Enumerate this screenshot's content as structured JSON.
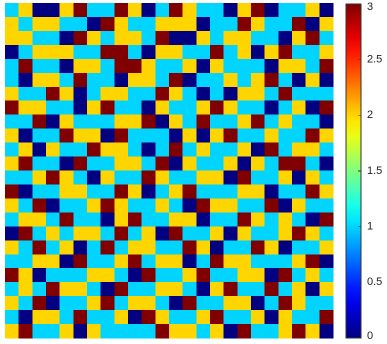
{
  "chart_data": {
    "type": "heatmap",
    "colormap": "jet",
    "z": [
      [
        1,
        2,
        0,
        0,
        2,
        3,
        1,
        1,
        3,
        2,
        0,
        1,
        3,
        2,
        1,
        1,
        0,
        2,
        3,
        0,
        1,
        1,
        2,
        0
      ],
      [
        2,
        1,
        2,
        2,
        1,
        1,
        0,
        3,
        2,
        1,
        1,
        2,
        2,
        2,
        0,
        1,
        1,
        3,
        2,
        1,
        1,
        3,
        0,
        2
      ],
      [
        2,
        2,
        1,
        1,
        0,
        3,
        2,
        1,
        2,
        2,
        1,
        3,
        0,
        0,
        2,
        1,
        2,
        2,
        1,
        1,
        0,
        2,
        3,
        1
      ],
      [
        0,
        1,
        2,
        2,
        2,
        1,
        1,
        3,
        3,
        1,
        0,
        2,
        2,
        1,
        1,
        3,
        1,
        2,
        0,
        2,
        3,
        1,
        1,
        2
      ],
      [
        1,
        3,
        1,
        1,
        0,
        2,
        2,
        1,
        3,
        3,
        2,
        1,
        1,
        2,
        0,
        2,
        1,
        1,
        1,
        0,
        2,
        2,
        1,
        3
      ],
      [
        1,
        0,
        2,
        2,
        1,
        3,
        1,
        1,
        0,
        2,
        2,
        1,
        3,
        0,
        1,
        1,
        2,
        1,
        2,
        3,
        1,
        0,
        2,
        0
      ],
      [
        2,
        1,
        1,
        3,
        2,
        0,
        1,
        2,
        2,
        1,
        1,
        3,
        2,
        1,
        0,
        1,
        0,
        2,
        2,
        1,
        3,
        1,
        1,
        1
      ],
      [
        3,
        2,
        2,
        1,
        1,
        0,
        2,
        3,
        1,
        1,
        0,
        2,
        1,
        1,
        2,
        3,
        2,
        1,
        1,
        0,
        1,
        2,
        0,
        3
      ],
      [
        1,
        1,
        3,
        0,
        2,
        1,
        1,
        1,
        2,
        2,
        3,
        0,
        2,
        1,
        3,
        1,
        1,
        2,
        3,
        1,
        2,
        1,
        1,
        0
      ],
      [
        2,
        0,
        1,
        1,
        3,
        2,
        2,
        0,
        3,
        1,
        1,
        1,
        0,
        2,
        0,
        2,
        3,
        1,
        1,
        2,
        1,
        1,
        3,
        2
      ],
      [
        1,
        2,
        0,
        2,
        1,
        1,
        3,
        2,
        2,
        1,
        0,
        1,
        3,
        1,
        2,
        1,
        1,
        2,
        0,
        3,
        1,
        2,
        2,
        1
      ],
      [
        2,
        3,
        1,
        1,
        0,
        3,
        1,
        1,
        2,
        2,
        1,
        3,
        0,
        2,
        1,
        1,
        2,
        0,
        2,
        1,
        3,
        3,
        1,
        0
      ],
      [
        1,
        1,
        2,
        3,
        2,
        1,
        0,
        2,
        1,
        1,
        3,
        2,
        1,
        1,
        2,
        2,
        0,
        3,
        1,
        1,
        2,
        0,
        2,
        1
      ],
      [
        3,
        0,
        1,
        1,
        2,
        2,
        1,
        1,
        3,
        2,
        0,
        1,
        2,
        3,
        1,
        1,
        1,
        2,
        2,
        0,
        1,
        1,
        3,
        2
      ],
      [
        2,
        1,
        3,
        0,
        1,
        1,
        2,
        3,
        2,
        1,
        1,
        2,
        1,
        0,
        3,
        2,
        2,
        1,
        1,
        3,
        0,
        2,
        1,
        1
      ],
      [
        1,
        2,
        2,
        1,
        3,
        1,
        1,
        0,
        2,
        3,
        1,
        1,
        2,
        2,
        0,
        1,
        1,
        3,
        2,
        1,
        2,
        1,
        0,
        3
      ],
      [
        0,
        3,
        1,
        2,
        1,
        2,
        2,
        1,
        3,
        1,
        2,
        0,
        3,
        1,
        1,
        2,
        0,
        2,
        1,
        1,
        2,
        3,
        2,
        1
      ],
      [
        2,
        1,
        3,
        1,
        2,
        0,
        1,
        3,
        1,
        2,
        2,
        1,
        1,
        3,
        2,
        0,
        1,
        1,
        3,
        2,
        0,
        1,
        1,
        2
      ],
      [
        1,
        1,
        2,
        2,
        0,
        3,
        1,
        1,
        2,
        3,
        1,
        2,
        2,
        0,
        1,
        3,
        2,
        2,
        1,
        1,
        1,
        2,
        3,
        0
      ],
      [
        3,
        2,
        0,
        1,
        1,
        1,
        2,
        2,
        1,
        0,
        3,
        1,
        1,
        2,
        3,
        1,
        1,
        2,
        2,
        0,
        3,
        1,
        2,
        1
      ],
      [
        1,
        2,
        1,
        3,
        2,
        2,
        1,
        0,
        3,
        1,
        1,
        2,
        2,
        1,
        0,
        2,
        3,
        1,
        1,
        3,
        1,
        2,
        0,
        2
      ],
      [
        2,
        1,
        3,
        0,
        1,
        1,
        2,
        3,
        1,
        2,
        2,
        1,
        0,
        3,
        1,
        1,
        2,
        2,
        0,
        1,
        3,
        2,
        1,
        1
      ],
      [
        1,
        0,
        2,
        2,
        1,
        3,
        1,
        1,
        2,
        0,
        3,
        2,
        1,
        1,
        2,
        3,
        1,
        1,
        2,
        0,
        2,
        1,
        1,
        3
      ],
      [
        2,
        3,
        1,
        1,
        2,
        0,
        2,
        1,
        1,
        1,
        1,
        3,
        2,
        2,
        1,
        2,
        0,
        3,
        1,
        1,
        2,
        3,
        2,
        0
      ]
    ],
    "clim": [
      0,
      3
    ],
    "cticks": [
      0,
      0.5,
      1,
      1.5,
      2,
      2.5,
      3
    ]
  }
}
